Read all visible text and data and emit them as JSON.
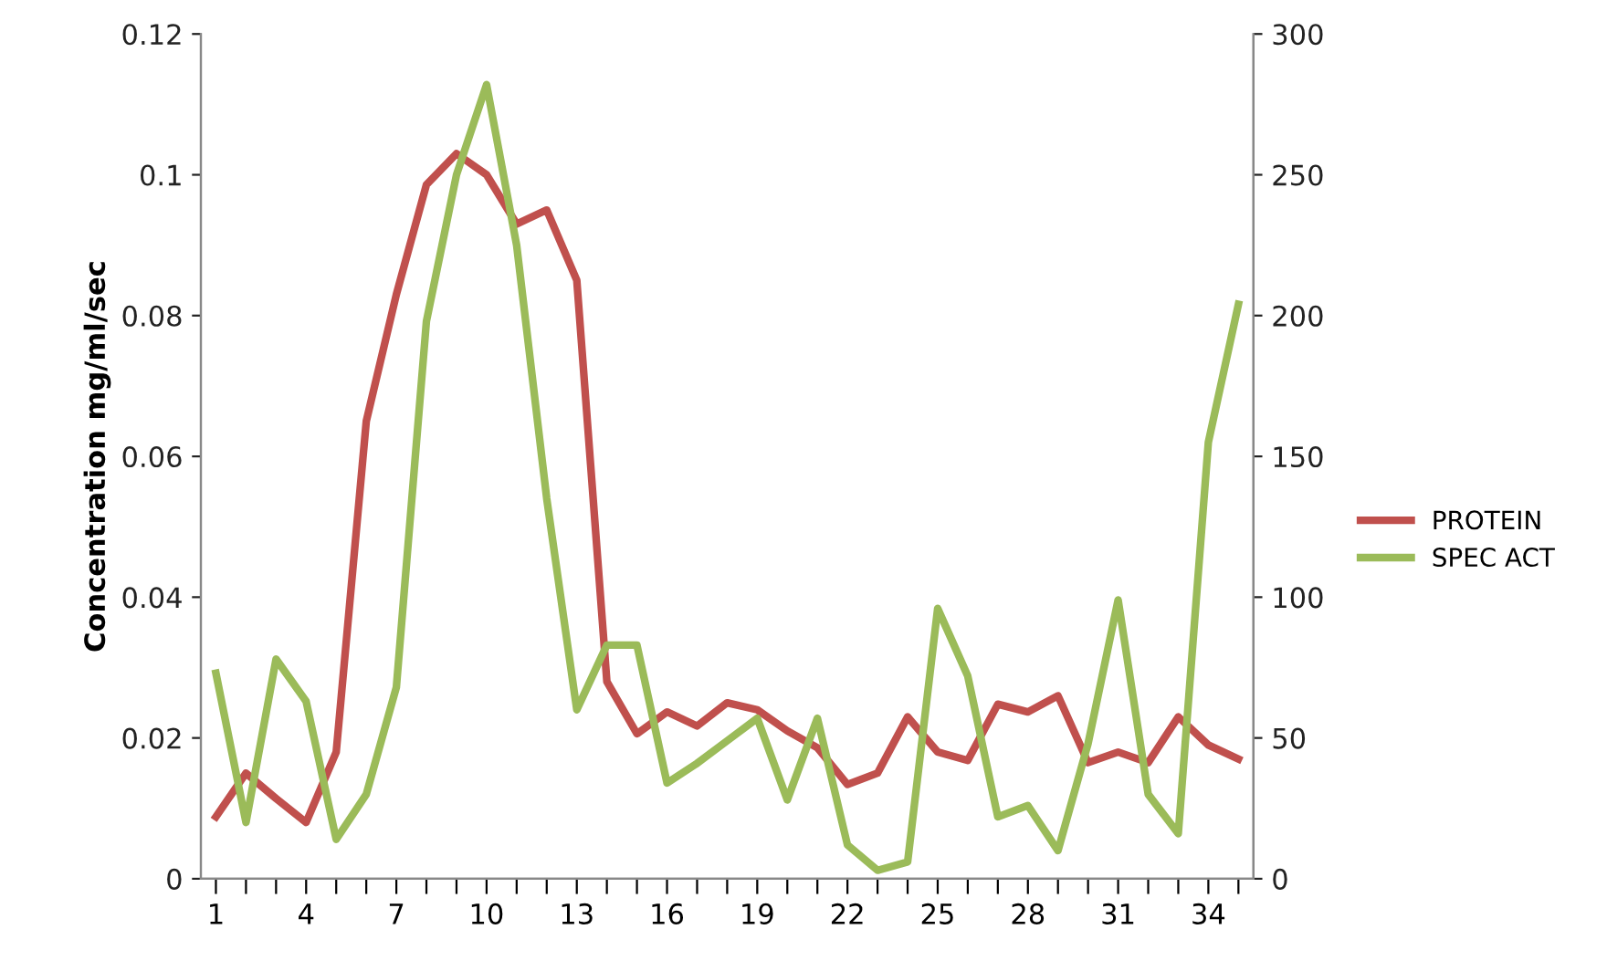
{
  "chart_data": {
    "type": "line",
    "ylabel": "Concentration mg/ml/sec",
    "categories": [
      "1",
      null,
      null,
      "4",
      null,
      null,
      "7",
      null,
      null,
      "10",
      null,
      null,
      "13",
      null,
      null,
      "16",
      null,
      null,
      "19",
      null,
      null,
      "22",
      null,
      null,
      "25",
      null,
      null,
      "28",
      null,
      null,
      "31",
      null,
      null,
      "34",
      null
    ],
    "series": [
      {
        "name": "PROTEIN",
        "color": "#c0504d",
        "values": [
          0.0088,
          0.015,
          0.0114,
          0.008,
          0.018,
          0.065,
          0.083,
          0.0986,
          0.103,
          0.1,
          0.093,
          0.095,
          0.085,
          0.028,
          0.0206,
          0.0237,
          0.0217,
          0.025,
          0.024,
          0.021,
          0.0186,
          0.0134,
          0.015,
          0.023,
          0.018,
          0.0168,
          0.0248,
          0.0237,
          0.026,
          0.0165,
          0.018,
          0.0165,
          0.023,
          0.019,
          0.017
        ]
      },
      {
        "name": "SPEC ACT",
        "color": "#9bbb59",
        "axis": "y2",
        "values": [
          73,
          20,
          78,
          63,
          14,
          30,
          68,
          198,
          250,
          282,
          225,
          135,
          60,
          83,
          83,
          34,
          41,
          49,
          57,
          28,
          57,
          12,
          3,
          6,
          96,
          72,
          22,
          26,
          10,
          48,
          99,
          30,
          16,
          155,
          204
        ]
      }
    ],
    "ylim": [
      0,
      0.12
    ],
    "yticks": [
      0,
      0.02,
      0.04,
      0.06,
      0.08,
      0.1,
      0.12
    ],
    "y2lim": [
      0,
      300
    ],
    "y2ticks": [
      0,
      50,
      100,
      150,
      200,
      250,
      300
    ],
    "grid": false,
    "legend": "right",
    "marker": "none",
    "line_style": "solid"
  }
}
